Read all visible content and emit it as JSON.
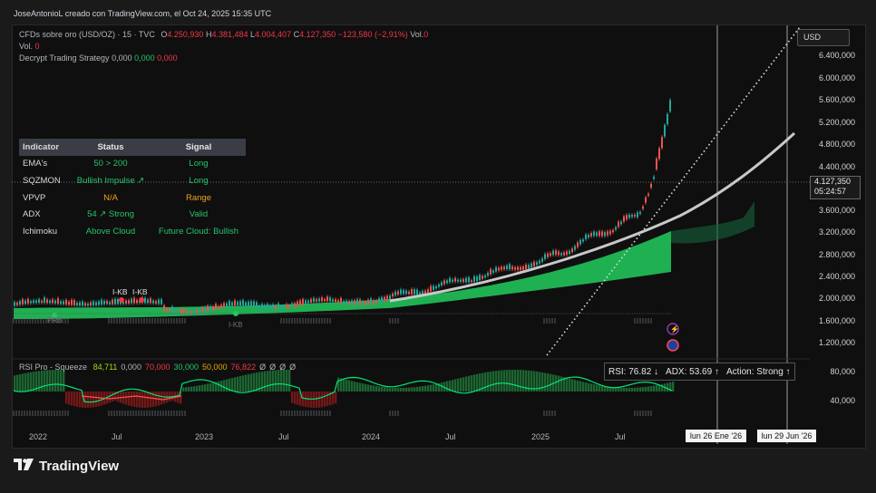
{
  "header": {
    "attribution": "JoseAntonioL creado con TradingView.com, el Oct 24, 2025 15:35 UTC",
    "symbol_desc": "CFDs sobre oro (USD/OZ) · 15 · TVC",
    "ohlc": {
      "o_label": "O",
      "o": "4.250,930",
      "h_label": "H",
      "h": "4.381,484",
      "l_label": "L",
      "l": "4.004,407",
      "c_label": "C",
      "c": "4.127,350",
      "change": "−123,580 (−2,91%)",
      "vol_label": "Vol.",
      "vol": "0"
    },
    "vol_line_label": "Vol.",
    "vol_line_value": "0",
    "strategy_label": "Decrypt Trading Strategy",
    "strategy_values": [
      "0,000",
      "0,000",
      "0,000"
    ]
  },
  "currency": "USD",
  "price_axis": [
    "6.400,000",
    "6.000,000",
    "5.600,000",
    "5.200,000",
    "4.800,000",
    "4.400,000",
    "3.600,000",
    "3.200,000",
    "2.800,000",
    "2.400,000",
    "2.000,000",
    "1.600,000",
    "1.200,000"
  ],
  "last_price": "4.127,350",
  "countdown": "05:24:57",
  "indicator_table": {
    "headers": [
      "Indicator",
      "Status",
      "Signal"
    ],
    "rows": [
      {
        "indicator": "EMA's",
        "status": "50 > 200",
        "signal": "Long",
        "status_color": "#26c46b",
        "signal_color": "#26c46b"
      },
      {
        "indicator": "SQZMON",
        "status": "Bullish Impulse ↗",
        "signal": "Long",
        "status_color": "#26c46b",
        "signal_color": "#26c46b"
      },
      {
        "indicator": "VPVP",
        "status": "N/A",
        "signal": "Range",
        "status_color": "#f0a020",
        "signal_color": "#f0a020"
      },
      {
        "indicator": "ADX",
        "status": "54 ↗ Strong",
        "signal": "Valid",
        "status_color": "#26c46b",
        "signal_color": "#26c46b"
      },
      {
        "indicator": "Ichimoku",
        "status": "Above Cloud",
        "signal": "Future Cloud: Bullish",
        "status_color": "#26c46b",
        "signal_color": "#26c46b"
      }
    ]
  },
  "markers": {
    "ikb1": "I-KB",
    "ikb2": "I-KB",
    "ikb3": "I-KB",
    "prb": "PRB"
  },
  "rsi_panel": {
    "label": "RSI Pro - Squeeze",
    "values": [
      "84,711",
      "0,000",
      "70,000",
      "30,000",
      "50,000",
      "76,822",
      "Ø",
      "Ø",
      "Ø",
      "Ø"
    ],
    "value_colors": [
      "#a0d911",
      "#b2b5be",
      "#f23645",
      "#26c46b",
      "#e0a800",
      "#f23645",
      "#b2b5be",
      "#b2b5be",
      "#b2b5be",
      "#b2b5be"
    ],
    "axis": [
      "80,000",
      "40,000"
    ],
    "summary": {
      "rsi": "RSI: 76.82 ↓",
      "adx": "ADX: 53.69 ↑",
      "action": "Action: Strong ↑"
    }
  },
  "time_axis": [
    "2022",
    "Jul",
    "2023",
    "Jul",
    "2024",
    "Jul",
    "2025",
    "Jul"
  ],
  "date_tags": [
    "lun 26 Ene '26",
    "lun 29 Jun '26"
  ],
  "brand": "TradingView",
  "colors": {
    "up": "#26a69a",
    "down": "#ef5350",
    "cloud": "#1fb052",
    "ema": "#c8c8c8",
    "rsi_line": "#00e676",
    "rsi_low": "#ff5252"
  }
}
